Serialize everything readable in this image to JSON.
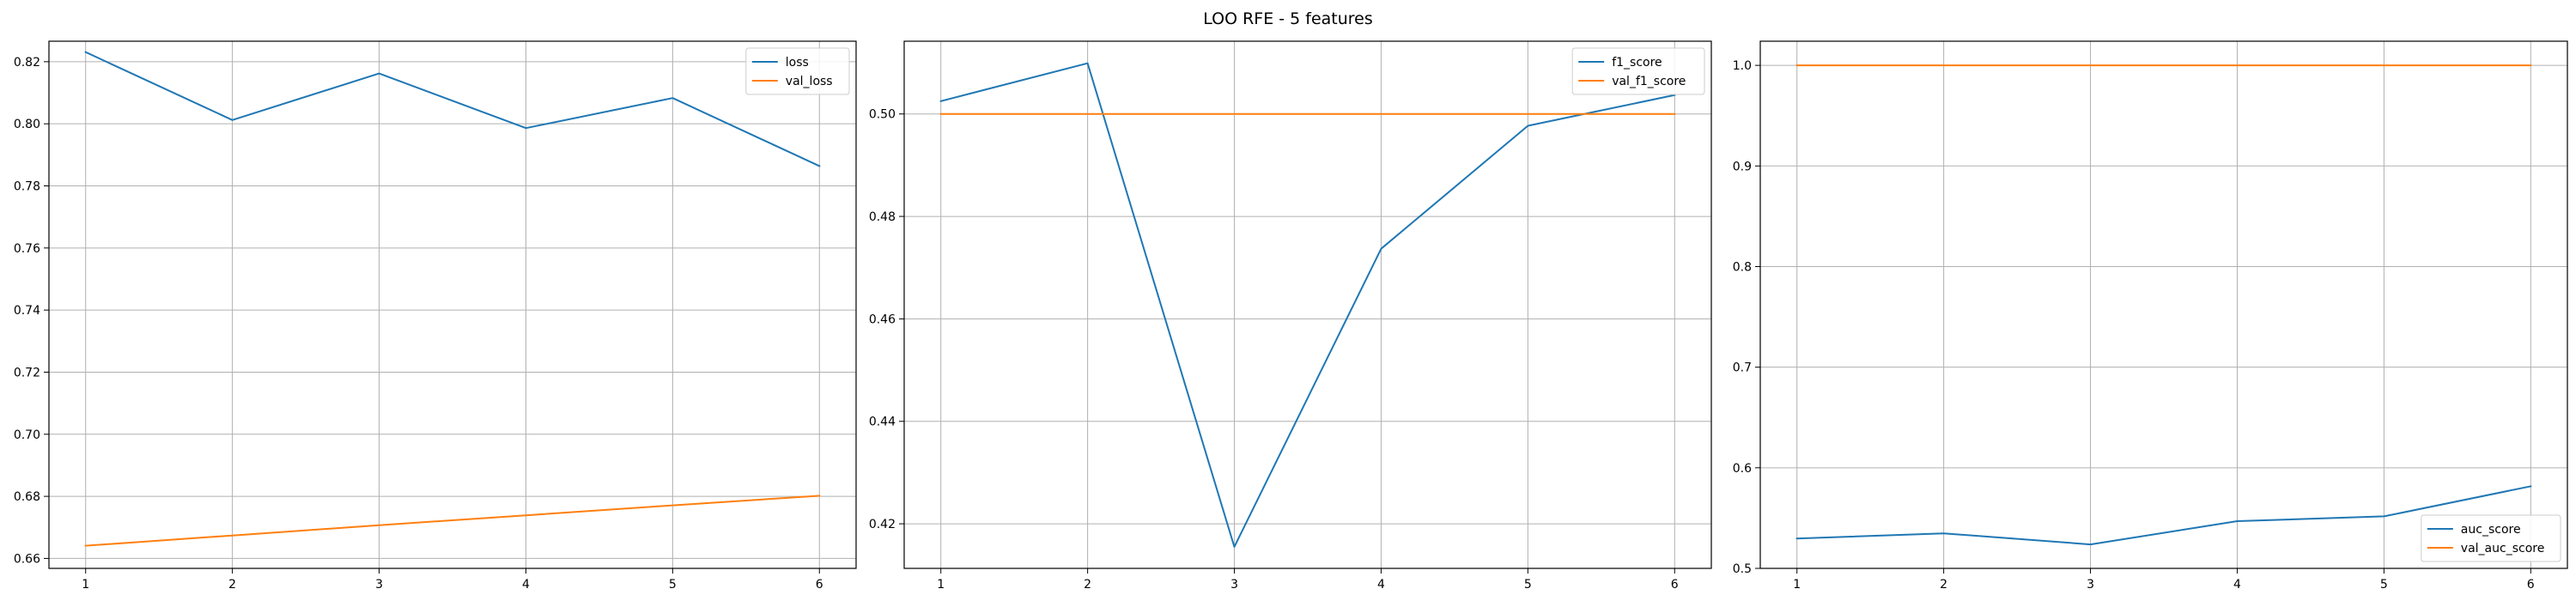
{
  "figure": {
    "title": "LOO RFE - 5 features"
  },
  "chart_data": [
    {
      "type": "line",
      "title": "",
      "xlabel": "",
      "ylabel": "",
      "x": [
        1,
        2,
        3,
        4,
        5,
        6
      ],
      "xticks": [
        1,
        2,
        3,
        4,
        5,
        6
      ],
      "xlim": [
        0.75,
        6.25
      ],
      "ylim": [
        0.6568,
        0.8266
      ],
      "yticks": [
        0.66,
        0.68,
        0.7,
        0.72,
        0.74,
        0.76,
        0.78,
        0.8,
        0.82
      ],
      "ytick_labels": [
        "0.66",
        "0.68",
        "0.70",
        "0.72",
        "0.74",
        "0.76",
        "0.78",
        "0.80",
        "0.82"
      ],
      "grid": true,
      "legend_position": "upper right",
      "series": [
        {
          "name": "loss",
          "color": "#1f77b4",
          "values": [
            0.8231,
            0.8012,
            0.8162,
            0.7986,
            0.8083,
            0.7864
          ]
        },
        {
          "name": "val_loss",
          "color": "#ff7f0e",
          "values": [
            0.6641,
            0.6674,
            0.6707,
            0.6739,
            0.6771,
            0.6802
          ]
        }
      ]
    },
    {
      "type": "line",
      "title": "",
      "xlabel": "",
      "ylabel": "",
      "x": [
        1,
        2,
        3,
        4,
        5,
        6
      ],
      "xticks": [
        1,
        2,
        3,
        4,
        5,
        6
      ],
      "xlim": [
        0.75,
        6.25
      ],
      "ylim": [
        0.4113,
        0.5142
      ],
      "yticks": [
        0.42,
        0.44,
        0.46,
        0.48,
        0.5
      ],
      "ytick_labels": [
        "0.42",
        "0.44",
        "0.46",
        "0.48",
        "0.50"
      ],
      "grid": true,
      "legend_position": "upper right",
      "series": [
        {
          "name": "f1_score",
          "color": "#1f77b4",
          "values": [
            0.5025,
            0.5099,
            0.4155,
            0.4737,
            0.4977,
            0.5037
          ]
        },
        {
          "name": "val_f1_score",
          "color": "#ff7f0e",
          "values": [
            0.5,
            0.5,
            0.5,
            0.5,
            0.5,
            0.5
          ]
        }
      ]
    },
    {
      "type": "line",
      "title": "",
      "xlabel": "",
      "ylabel": "",
      "x": [
        1,
        2,
        3,
        4,
        5,
        6
      ],
      "xticks": [
        1,
        2,
        3,
        4,
        5,
        6
      ],
      "xlim": [
        0.75,
        6.25
      ],
      "ylim": [
        0.5,
        1.024
      ],
      "yticks": [
        0.5,
        0.6,
        0.7,
        0.8,
        0.9,
        1.0
      ],
      "ytick_labels": [
        "0.5",
        "0.6",
        "0.7",
        "0.8",
        "0.9",
        "1.0"
      ],
      "grid": true,
      "legend_position": "lower right",
      "series": [
        {
          "name": "auc_score",
          "color": "#1f77b4",
          "values": [
            0.5297,
            0.5348,
            0.5238,
            0.5469,
            0.5517,
            0.5816
          ]
        },
        {
          "name": "val_auc_score",
          "color": "#ff7f0e",
          "values": [
            1.0,
            1.0,
            1.0,
            1.0,
            1.0,
            1.0
          ]
        }
      ]
    }
  ]
}
